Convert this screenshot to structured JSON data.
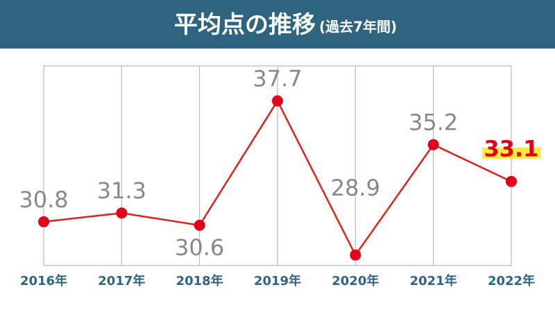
{
  "chart_data": {
    "type": "line",
    "title": "平均点の推移",
    "subtitle": "(過去7年間)",
    "categories": [
      "2016年",
      "2017年",
      "2018年",
      "2019年",
      "2020年",
      "2021年",
      "2022年"
    ],
    "values": [
      30.8,
      31.3,
      30.6,
      37.7,
      28.9,
      35.2,
      33.1
    ],
    "color": "#e0201a",
    "ylim": [
      28.3,
      39.7
    ],
    "grid": true
  }
}
